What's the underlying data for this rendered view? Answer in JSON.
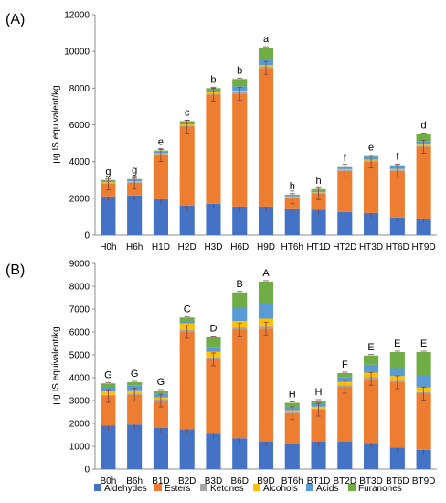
{
  "colors": {
    "Aldehydes": "#4472c4",
    "Esters": "#ed7d31",
    "Ketones": "#a5a5a5",
    "Alcohols": "#ffc000",
    "Acids": "#5b9bd5",
    "Furanones": "#70ad47"
  },
  "legend": {
    "items": [
      "Aldehydes",
      "Esters",
      "Ketones",
      "Alcohols",
      "Acids",
      "Furanones"
    ],
    "placement": "bottom"
  },
  "chart_data": [
    {
      "type": "bar",
      "stacked": true,
      "panel_label": "(A)",
      "ylabel": "µg IS equivalent/kg",
      "xlabel": "",
      "ylim": [
        0,
        12000
      ],
      "yticks": [
        0,
        2000,
        4000,
        6000,
        8000,
        10000,
        12000
      ],
      "grid": false,
      "categories": [
        "H0h",
        "H6h",
        "H1D",
        "H2D",
        "H3D",
        "H6D",
        "H9D",
        "HT6h",
        "HT1D",
        "HT2D",
        "HT3D",
        "HT6D",
        "HT9D"
      ],
      "letters": [
        "g",
        "g",
        "e",
        "c",
        "b",
        "b",
        "a",
        "h",
        "h",
        "f",
        "e",
        "f",
        "d"
      ],
      "series": [
        {
          "name": "Aldehydes",
          "values": [
            2100,
            2150,
            1950,
            1600,
            1700,
            1550,
            1550,
            1450,
            1380,
            1250,
            1200,
            950,
            900
          ]
        },
        {
          "name": "Esters",
          "values": [
            700,
            700,
            2400,
            4300,
            5950,
            6150,
            7550,
            600,
            900,
            2250,
            2800,
            2550,
            3900
          ]
        },
        {
          "name": "Ketones",
          "values": [
            40,
            40,
            60,
            60,
            60,
            80,
            80,
            30,
            30,
            50,
            60,
            50,
            60
          ]
        },
        {
          "name": "Alcohols",
          "values": [
            40,
            40,
            50,
            60,
            60,
            70,
            70,
            20,
            20,
            40,
            50,
            50,
            60
          ]
        },
        {
          "name": "Acids",
          "values": [
            80,
            80,
            80,
            100,
            120,
            250,
            350,
            60,
            70,
            100,
            150,
            150,
            200
          ]
        },
        {
          "name": "Furanones",
          "values": [
            40,
            40,
            60,
            80,
            110,
            400,
            600,
            40,
            100,
            10,
            40,
            50,
            380
          ]
        }
      ]
    },
    {
      "type": "bar",
      "stacked": true,
      "panel_label": "(B)",
      "ylabel": "µg IS equivalent/kg",
      "xlabel": "",
      "ylim": [
        0,
        9000
      ],
      "yticks": [
        0,
        1000,
        2000,
        3000,
        4000,
        5000,
        6000,
        7000,
        8000,
        9000
      ],
      "grid": false,
      "categories": [
        "B0h",
        "B6h",
        "B1D",
        "B2D",
        "B3D",
        "B6D",
        "B9D",
        "BT6h",
        "BT1D",
        "BT2D",
        "BT3D",
        "BT6D",
        "BT9D"
      ],
      "letters": [
        "G",
        "G",
        "G",
        "C",
        "D",
        "B",
        "A",
        "H",
        "H",
        "F",
        "E",
        "E",
        "E"
      ],
      "series": [
        {
          "name": "Aldehydes",
          "values": [
            1900,
            1950,
            1800,
            1750,
            1550,
            1350,
            1200,
            1100,
            1200,
            1200,
            1150,
            950,
            850
          ]
        },
        {
          "name": "Esters",
          "values": [
            1300,
            1300,
            1200,
            4250,
            3250,
            4750,
            4950,
            1350,
            1400,
            2400,
            2800,
            2850,
            2450
          ]
        },
        {
          "name": "Ketones",
          "values": [
            50,
            50,
            40,
            80,
            80,
            80,
            80,
            50,
            50,
            60,
            70,
            70,
            70
          ]
        },
        {
          "name": "Alcohols",
          "values": [
            150,
            150,
            100,
            300,
            250,
            300,
            350,
            80,
            80,
            150,
            200,
            200,
            200
          ]
        },
        {
          "name": "Acids",
          "values": [
            200,
            200,
            150,
            100,
            200,
            600,
            700,
            150,
            150,
            200,
            350,
            350,
            550
          ]
        },
        {
          "name": "Furanones",
          "values": [
            150,
            150,
            150,
            150,
            450,
            650,
            920,
            170,
            120,
            190,
            400,
            700,
            1000
          ]
        }
      ]
    }
  ]
}
